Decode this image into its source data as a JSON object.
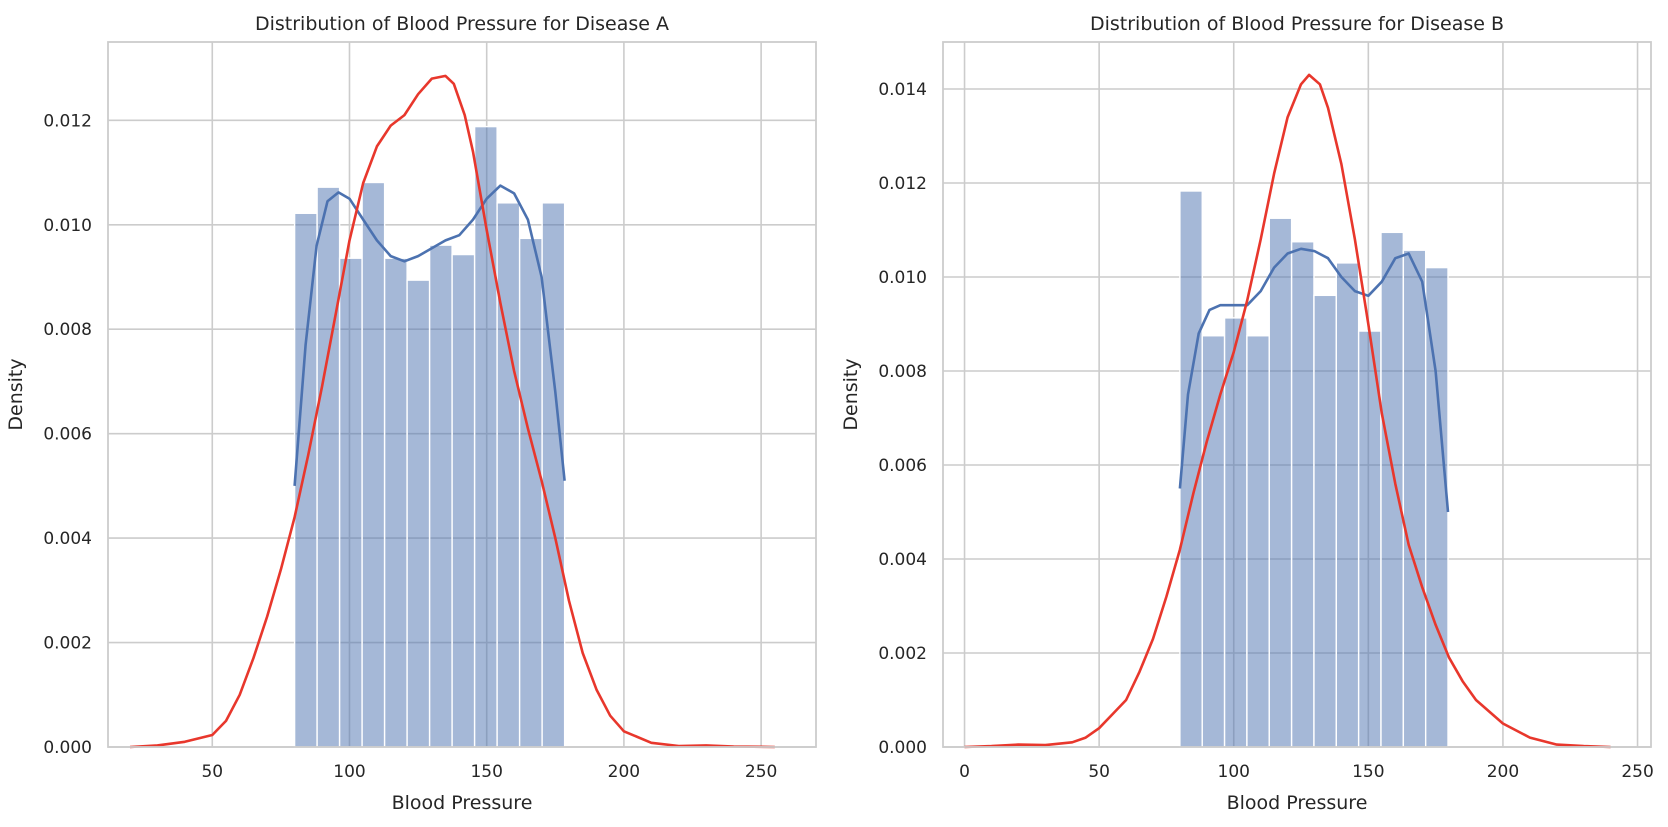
{
  "chart_data": [
    {
      "type": "bar",
      "title": "Distribution of Blood Pressure for Disease A",
      "xlabel": "Blood Pressure",
      "ylabel": "Density",
      "xlim": [
        12,
        270
      ],
      "ylim": [
        0,
        0.0135
      ],
      "xticks": [
        50,
        100,
        150,
        200,
        250
      ],
      "xtick_labels": [
        "50",
        "100",
        "150",
        "200",
        "250"
      ],
      "yticks": [
        0,
        0.002,
        0.004,
        0.006,
        0.008,
        0.01,
        0.012
      ],
      "ytick_labels": [
        "0.000",
        "0.002",
        "0.004",
        "0.006",
        "0.008",
        "0.010",
        "0.012"
      ],
      "grid": true,
      "histogram": {
        "bin_edges": [
          80,
          88.2,
          96.4,
          104.6,
          112.8,
          121,
          129.2,
          137.4,
          145.6,
          153.8,
          162,
          170.2,
          178.4
        ],
        "values": [
          0.01022,
          0.01072,
          0.00936,
          0.01081,
          0.00936,
          0.00894,
          0.00961,
          0.00943,
          0.01188,
          0.01042,
          0.00974,
          0.01042
        ]
      },
      "kde_blue": {
        "x": [
          80,
          84,
          88,
          92,
          96,
          100,
          105,
          110,
          115,
          120,
          125,
          130,
          135,
          140,
          145,
          150,
          155,
          160,
          165,
          170,
          175,
          178.4
        ],
        "y": [
          0.005,
          0.0077,
          0.0096,
          0.01045,
          0.01062,
          0.0105,
          0.0101,
          0.0097,
          0.0094,
          0.0093,
          0.0094,
          0.00955,
          0.0097,
          0.0098,
          0.0101,
          0.0105,
          0.01075,
          0.0106,
          0.0101,
          0.009,
          0.0068,
          0.0051
        ]
      },
      "kde_red": {
        "x": [
          20,
          30,
          40,
          50,
          55,
          60,
          65,
          70,
          75,
          80,
          85,
          90,
          95,
          100,
          105,
          110,
          115,
          120,
          125,
          130,
          135,
          138,
          142,
          145,
          150,
          155,
          160,
          165,
          170,
          175,
          180,
          185,
          190,
          195,
          200,
          210,
          220,
          230,
          240,
          255
        ],
        "y": [
          0.0,
          3e-05,
          0.0001,
          0.00023,
          0.0005,
          0.001,
          0.0017,
          0.0025,
          0.0034,
          0.0044,
          0.0056,
          0.0069,
          0.0083,
          0.0097,
          0.0108,
          0.0115,
          0.0119,
          0.0121,
          0.0125,
          0.0128,
          0.01285,
          0.0127,
          0.0121,
          0.0114,
          0.0099,
          0.0085,
          0.0072,
          0.0061,
          0.0051,
          0.004,
          0.0028,
          0.0018,
          0.0011,
          0.0006,
          0.0003,
          8e-05,
          2e-05,
          3e-05,
          1e-05,
          0.0
        ]
      }
    },
    {
      "type": "bar",
      "title": "Distribution of Blood Pressure for Disease B",
      "xlabel": "Blood Pressure",
      "ylabel": "Density",
      "xlim": [
        -8,
        255
      ],
      "ylim": [
        0,
        0.015
      ],
      "xticks": [
        0,
        50,
        100,
        150,
        200,
        250
      ],
      "xtick_labels": [
        "0",
        "50",
        "100",
        "150",
        "200",
        "250"
      ],
      "yticks": [
        0,
        0.002,
        0.004,
        0.006,
        0.008,
        0.01,
        0.012,
        0.014
      ],
      "ytick_labels": [
        "0.000",
        "0.002",
        "0.004",
        "0.006",
        "0.008",
        "0.010",
        "0.012",
        "0.014"
      ],
      "grid": true,
      "histogram": {
        "bin_edges": [
          80,
          88.3,
          96.6,
          104.9,
          113.2,
          121.5,
          129.8,
          138.1,
          146.4,
          154.7,
          163,
          171.3,
          179.6
        ],
        "values": [
          0.01183,
          0.00875,
          0.00913,
          0.00875,
          0.01125,
          0.01075,
          0.00961,
          0.0103,
          0.00885,
          0.01095,
          0.01057,
          0.0102
        ]
      },
      "kde_blue": {
        "x": [
          80,
          83,
          87,
          91,
          95,
          100,
          105,
          110,
          115,
          120,
          125,
          130,
          135,
          140,
          145,
          150,
          155,
          160,
          165,
          170,
          175,
          179.6
        ],
        "y": [
          0.0055,
          0.0075,
          0.0088,
          0.0093,
          0.0094,
          0.0094,
          0.0094,
          0.0097,
          0.0102,
          0.0105,
          0.0106,
          0.01055,
          0.0104,
          0.01,
          0.0097,
          0.0096,
          0.0099,
          0.0104,
          0.0105,
          0.0099,
          0.008,
          0.005
        ]
      },
      "kde_red": {
        "x": [
          0,
          10,
          20,
          30,
          40,
          45,
          50,
          55,
          60,
          65,
          70,
          75,
          80,
          85,
          90,
          95,
          100,
          105,
          110,
          115,
          120,
          125,
          128,
          132,
          135,
          140,
          145,
          150,
          155,
          160,
          165,
          170,
          175,
          180,
          185,
          190,
          200,
          210,
          220,
          230,
          240
        ],
        "y": [
          0.0,
          2e-05,
          5e-05,
          4e-05,
          0.0001,
          0.0002,
          0.0004,
          0.0007,
          0.001,
          0.0016,
          0.0023,
          0.0032,
          0.0042,
          0.0054,
          0.0065,
          0.0075,
          0.0084,
          0.0095,
          0.0108,
          0.0122,
          0.0134,
          0.0141,
          0.0143,
          0.0141,
          0.0136,
          0.0124,
          0.0108,
          0.009,
          0.0071,
          0.0056,
          0.0043,
          0.0034,
          0.0026,
          0.0019,
          0.0014,
          0.001,
          0.0005,
          0.0002,
          5e-05,
          2e-05,
          0.0
        ]
      }
    }
  ]
}
